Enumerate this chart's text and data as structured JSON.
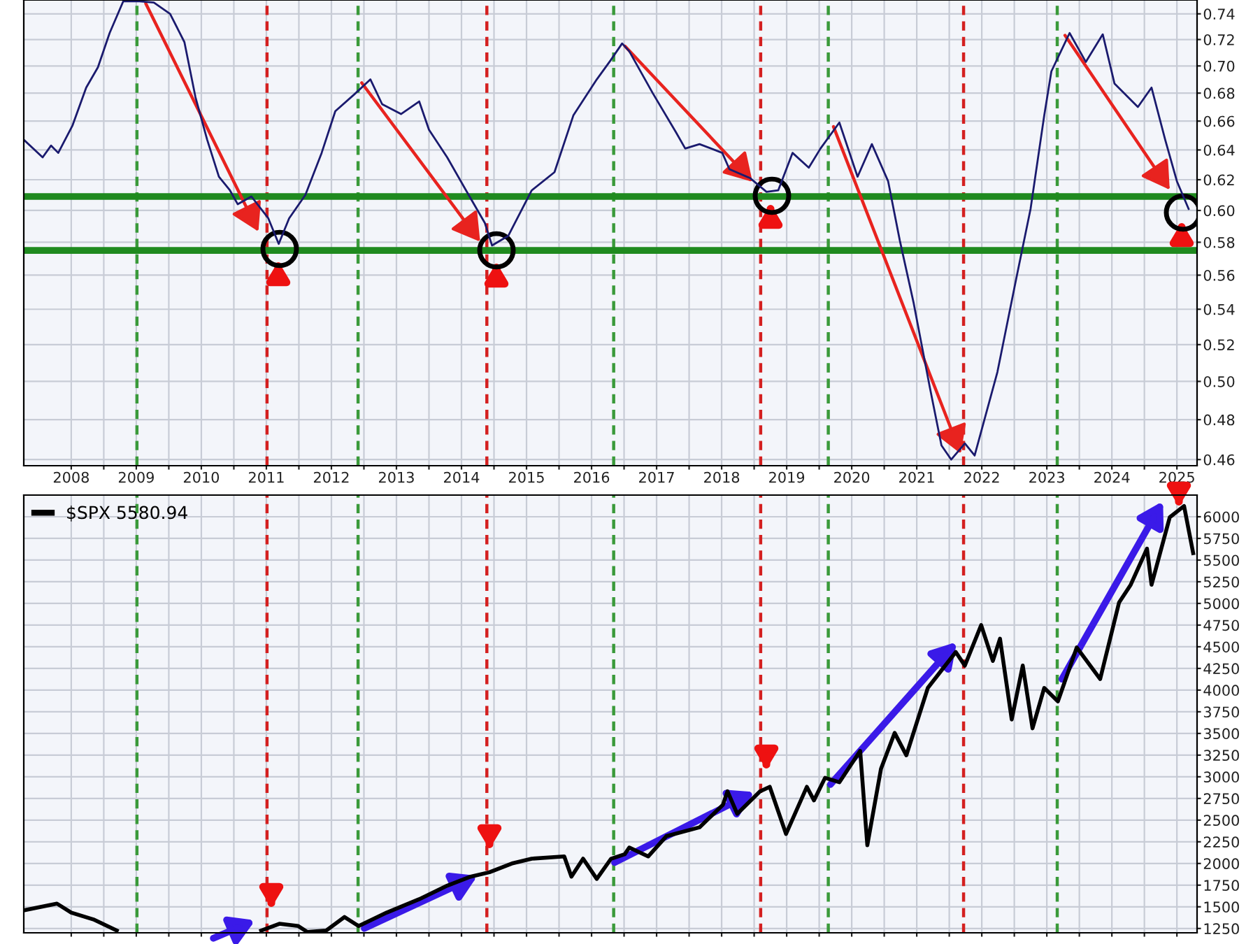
{
  "chart_data": [
    {
      "type": "line",
      "log": "y",
      "grid": true,
      "legend": false,
      "xlim": [
        2007.27,
        2025.31
      ],
      "ylim": [
        0.457,
        0.751
      ],
      "xticks": [
        2008,
        {
          "value": 2008.5,
          "label": null
        },
        2009,
        {
          "value": 2009.5,
          "label": null
        },
        2010,
        {
          "value": 2010.5,
          "label": null
        },
        2011,
        {
          "value": 2011.5,
          "label": null
        },
        2012,
        {
          "value": 2012.5,
          "label": null
        },
        2013,
        {
          "value": 2013.5,
          "label": null
        },
        2014,
        {
          "value": 2014.5,
          "label": null
        },
        2015,
        {
          "value": 2015.5,
          "label": null
        },
        2016,
        {
          "value": 2016.5,
          "label": null
        },
        2017,
        {
          "value": 2017.5,
          "label": null
        },
        2018,
        {
          "value": 2018.5,
          "label": null
        },
        2019,
        {
          "value": 2019.5,
          "label": null
        },
        2020,
        {
          "value": 2020.5,
          "label": null
        },
        2021,
        {
          "value": 2021.5,
          "label": null
        },
        2022,
        {
          "value": 2022.5,
          "label": null
        },
        2023,
        {
          "value": 2023.5,
          "label": null
        },
        2024,
        {
          "value": 2024.5,
          "label": null
        },
        2025
      ],
      "yticks": [
        0.46,
        0.48,
        {
          "value": 0.5,
          "label": "0.50"
        },
        0.52,
        0.54,
        0.56,
        0.58,
        {
          "value": 0.6,
          "label": "0.60"
        },
        0.62,
        0.64,
        0.66,
        0.68,
        {
          "value": 0.7,
          "label": "0.70"
        },
        0.72,
        0.74
      ],
      "series": [
        {
          "color": "#1a1a6e",
          "x": [
            2007.27,
            2007.56,
            2007.69,
            2007.8,
            2008.02,
            2008.23,
            2008.41,
            2008.59,
            2008.8,
            2009.05,
            2009.27,
            2009.52,
            2009.74,
            2009.91,
            2010.09,
            2010.27,
            2010.44,
            2010.56,
            2010.77,
            2011.03,
            2011.19,
            2011.35,
            2011.6,
            2011.85,
            2012.06,
            2012.35,
            2012.6,
            2012.78,
            2013.07,
            2013.35,
            2013.5,
            2013.78,
            2014.07,
            2014.36,
            2014.47,
            2014.72,
            2015.08,
            2015.43,
            2015.72,
            2016.08,
            2016.29,
            2016.47,
            2016.58,
            2016.94,
            2017.3,
            2017.44,
            2017.66,
            2018.01,
            2018.12,
            2018.44,
            2018.69,
            2018.87,
            2019.09,
            2019.34,
            2019.52,
            2019.81,
            2020.09,
            2020.31,
            2020.56,
            2020.74,
            2020.95,
            2021.2,
            2021.38,
            2021.53,
            2021.74,
            2021.89,
            2022.24,
            2022.53,
            2022.75,
            2022.96,
            2023.07,
            2023.35,
            2023.6,
            2023.86,
            2024.04,
            2024.4,
            2024.61,
            2024.82,
            2025.0,
            2025.18
          ],
          "values": [
            0.647,
            0.635,
            0.643,
            0.638,
            0.657,
            0.684,
            0.699,
            0.725,
            0.75,
            0.75,
            0.749,
            0.74,
            0.718,
            0.677,
            0.647,
            0.622,
            0.613,
            0.604,
            0.609,
            0.595,
            0.579,
            0.595,
            0.61,
            0.638,
            0.667,
            0.679,
            0.69,
            0.672,
            0.665,
            0.674,
            0.654,
            0.635,
            0.613,
            0.592,
            0.578,
            0.584,
            0.613,
            0.625,
            0.664,
            0.69,
            0.704,
            0.717,
            0.711,
            0.68,
            0.652,
            0.641,
            0.644,
            0.638,
            0.627,
            0.621,
            0.612,
            0.613,
            0.638,
            0.628,
            0.641,
            0.659,
            0.622,
            0.644,
            0.619,
            0.581,
            0.544,
            0.497,
            0.467,
            0.46,
            0.468,
            0.462,
            0.505,
            0.558,
            0.601,
            0.664,
            0.696,
            0.725,
            0.703,
            0.724,
            0.687,
            0.67,
            0.684,
            0.647,
            0.619,
            0.601
          ]
        }
      ],
      "ref_lines": [
        {
          "axis": "x",
          "value": 2009.01,
          "color": "#3a9a3a",
          "line_style": "dashed"
        },
        {
          "axis": "x",
          "value": 2011.01,
          "color": "#d42020",
          "line_style": "dashed"
        },
        {
          "axis": "x",
          "value": 2012.41,
          "color": "#3a9a3a",
          "line_style": "dashed"
        },
        {
          "axis": "x",
          "value": 2014.39,
          "color": "#d42020",
          "line_style": "dashed"
        },
        {
          "axis": "x",
          "value": 2016.34,
          "color": "#3a9a3a",
          "line_style": "dashed"
        },
        {
          "axis": "x",
          "value": 2018.6,
          "color": "#d42020",
          "line_style": "dashed"
        },
        {
          "axis": "x",
          "value": 2019.64,
          "color": "#3a9a3a",
          "line_style": "dashed"
        },
        {
          "axis": "x",
          "value": 2021.72,
          "color": "#d42020",
          "line_style": "dashed"
        },
        {
          "axis": "x",
          "value": 2023.16,
          "color": "#3a9a3a",
          "line_style": "dashed"
        },
        {
          "axis": "y",
          "value": 0.609,
          "color": "#1f8a1f",
          "line_style": "solid"
        },
        {
          "axis": "y",
          "value": 0.575,
          "color": "#1f8a1f",
          "line_style": "solid"
        }
      ]
    },
    {
      "type": "line",
      "grid": true,
      "legend": "top left",
      "tick_labels": "y",
      "xlim": [
        2007.27,
        2025.31
      ],
      "ylim": [
        1200,
        6250
      ],
      "xticks": [
        2008,
        {
          "value": 2008.5,
          "label": null
        },
        2009,
        {
          "value": 2009.5,
          "label": null
        },
        2010,
        {
          "value": 2010.5,
          "label": null
        },
        2011,
        {
          "value": 2011.5,
          "label": null
        },
        2012,
        {
          "value": 2012.5,
          "label": null
        },
        2013,
        {
          "value": 2013.5,
          "label": null
        },
        2014,
        {
          "value": 2014.5,
          "label": null
        },
        2015,
        {
          "value": 2015.5,
          "label": null
        },
        2016,
        {
          "value": 2016.5,
          "label": null
        },
        2017,
        {
          "value": 2017.5,
          "label": null
        },
        2018,
        {
          "value": 2018.5,
          "label": null
        },
        2019,
        {
          "value": 2019.5,
          "label": null
        },
        2020,
        {
          "value": 2020.5,
          "label": null
        },
        2021,
        {
          "value": 2021.5,
          "label": null
        },
        2022,
        {
          "value": 2022.5,
          "label": null
        },
        2023,
        {
          "value": 2023.5,
          "label": null
        },
        2024,
        {
          "value": 2024.5,
          "label": null
        },
        2025
      ],
      "yticks": [
        1250,
        1500,
        1750,
        2000,
        2250,
        2500,
        2750,
        3000,
        3250,
        3500,
        3750,
        4000,
        4250,
        4500,
        4750,
        5000,
        5250,
        5500,
        5750,
        6000
      ],
      "series": [
        {
          "name": "$SPX 5580.94",
          "color": "#000000",
          "x": [
            2007.27,
            2007.78,
            2008.0,
            2008.34,
            2008.7,
            2009.5,
            2010.92,
            2011.2,
            2011.49,
            2011.63,
            2011.92,
            2012.2,
            2012.42,
            2012.85,
            2013.35,
            2013.78,
            2014.14,
            2014.43,
            2014.79,
            2015.08,
            2015.58,
            2015.69,
            2015.87,
            2016.08,
            2016.3,
            2016.51,
            2016.58,
            2016.87,
            2017.15,
            2017.66,
            2018.02,
            2018.09,
            2018.24,
            2018.59,
            2018.74,
            2018.99,
            2019.31,
            2019.42,
            2019.59,
            2019.81,
            2020.13,
            2020.24,
            2020.45,
            2020.66,
            2020.84,
            2021.17,
            2021.6,
            2021.74,
            2021.99,
            2022.17,
            2022.28,
            2022.46,
            2022.63,
            2022.78,
            2022.96,
            2023.17,
            2023.46,
            2023.82,
            2024.11,
            2024.29,
            2024.54,
            2024.61,
            2024.89,
            2025.11,
            2025.25
          ],
          "values": [
            1459,
            1537,
            1433,
            1355,
            1226,
            null,
            1226,
            1304,
            1278,
            1210,
            1226,
            1382,
            1278,
            1433,
            1588,
            1744,
            1848,
            1899,
            2003,
            2055,
            2081,
            1848,
            2055,
            1822,
            2055,
            2107,
            2184,
            2081,
            2315,
            2417,
            2677,
            2832,
            2573,
            2832,
            2884,
            2340,
            2884,
            2728,
            2988,
            2937,
            3299,
            2210,
            3092,
            3506,
            3248,
            4025,
            4439,
            4283,
            4750,
            4336,
            4594,
            3661,
            4283,
            3559,
            4025,
            3870,
            4492,
            4128,
            5009,
            5216,
            5632,
            5216,
            5994,
            6124,
            5580
          ]
        }
      ],
      "ref_lines": [
        {
          "axis": "x",
          "value": 2009.01,
          "color": "#3a9a3a",
          "line_style": "dashed"
        },
        {
          "axis": "x",
          "value": 2011.01,
          "color": "#d42020",
          "line_style": "dashed"
        },
        {
          "axis": "x",
          "value": 2012.41,
          "color": "#3a9a3a",
          "line_style": "dashed"
        },
        {
          "axis": "x",
          "value": 2014.39,
          "color": "#d42020",
          "line_style": "dashed"
        },
        {
          "axis": "x",
          "value": 2016.34,
          "color": "#3a9a3a",
          "line_style": "dashed"
        },
        {
          "axis": "x",
          "value": 2018.6,
          "color": "#d42020",
          "line_style": "dashed"
        },
        {
          "axis": "x",
          "value": 2019.64,
          "color": "#3a9a3a",
          "line_style": "dashed"
        },
        {
          "axis": "x",
          "value": 2021.72,
          "color": "#d42020",
          "line_style": "dashed"
        },
        {
          "axis": "x",
          "value": 2023.16,
          "color": "#3a9a3a",
          "line_style": "dashed"
        }
      ]
    }
  ]
}
